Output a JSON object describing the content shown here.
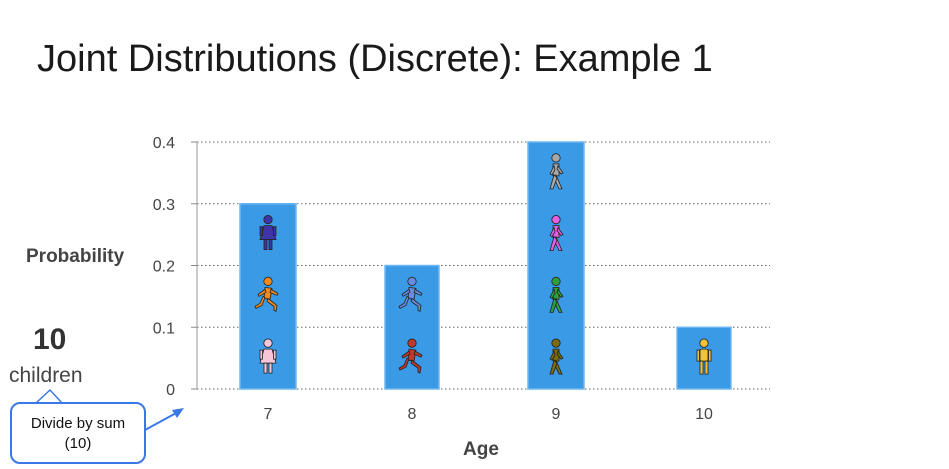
{
  "slide": {
    "title": "Joint Distributions (Discrete): Example 1",
    "count": "10",
    "count_label": "children",
    "callout_line1": "Divide by sum",
    "callout_line2": "(10)"
  },
  "colors": {
    "bar": "#3a9ae6",
    "bar_border": "#6fb7f2",
    "grid": "#666666",
    "callout": "#3b78e7"
  },
  "chart_data": {
    "type": "bar",
    "title": "",
    "xlabel": "Age",
    "ylabel": "Probability",
    "categories": [
      "7",
      "8",
      "9",
      "10"
    ],
    "values": [
      0.3,
      0.2,
      0.4,
      0.1
    ],
    "ylim": [
      0,
      0.4
    ],
    "yticks": [
      "0",
      "0.1",
      "0.2",
      "0.3",
      "0.4"
    ],
    "grid": true,
    "bar_figures": [
      [
        {
          "icon": "female-person-icon",
          "color": "#3f35a8"
        },
        {
          "icon": "running-person-icon",
          "color": "#f08a1c"
        },
        {
          "icon": "female-person-icon",
          "color": "#f7c6d6"
        }
      ],
      [
        {
          "icon": "running-person-icon",
          "color": "#6a8be0"
        },
        {
          "icon": "running-person-icon",
          "color": "#c0392b"
        }
      ],
      [
        {
          "icon": "walking-person-icon",
          "color": "#a8a8a8"
        },
        {
          "icon": "walking-person-icon",
          "color": "#e060e0"
        },
        {
          "icon": "walking-person-icon",
          "color": "#2f9e3f"
        },
        {
          "icon": "walking-person-icon",
          "color": "#7a6a10"
        }
      ],
      [
        {
          "icon": "standing-person-icon",
          "color": "#f2c23a"
        }
      ]
    ]
  }
}
